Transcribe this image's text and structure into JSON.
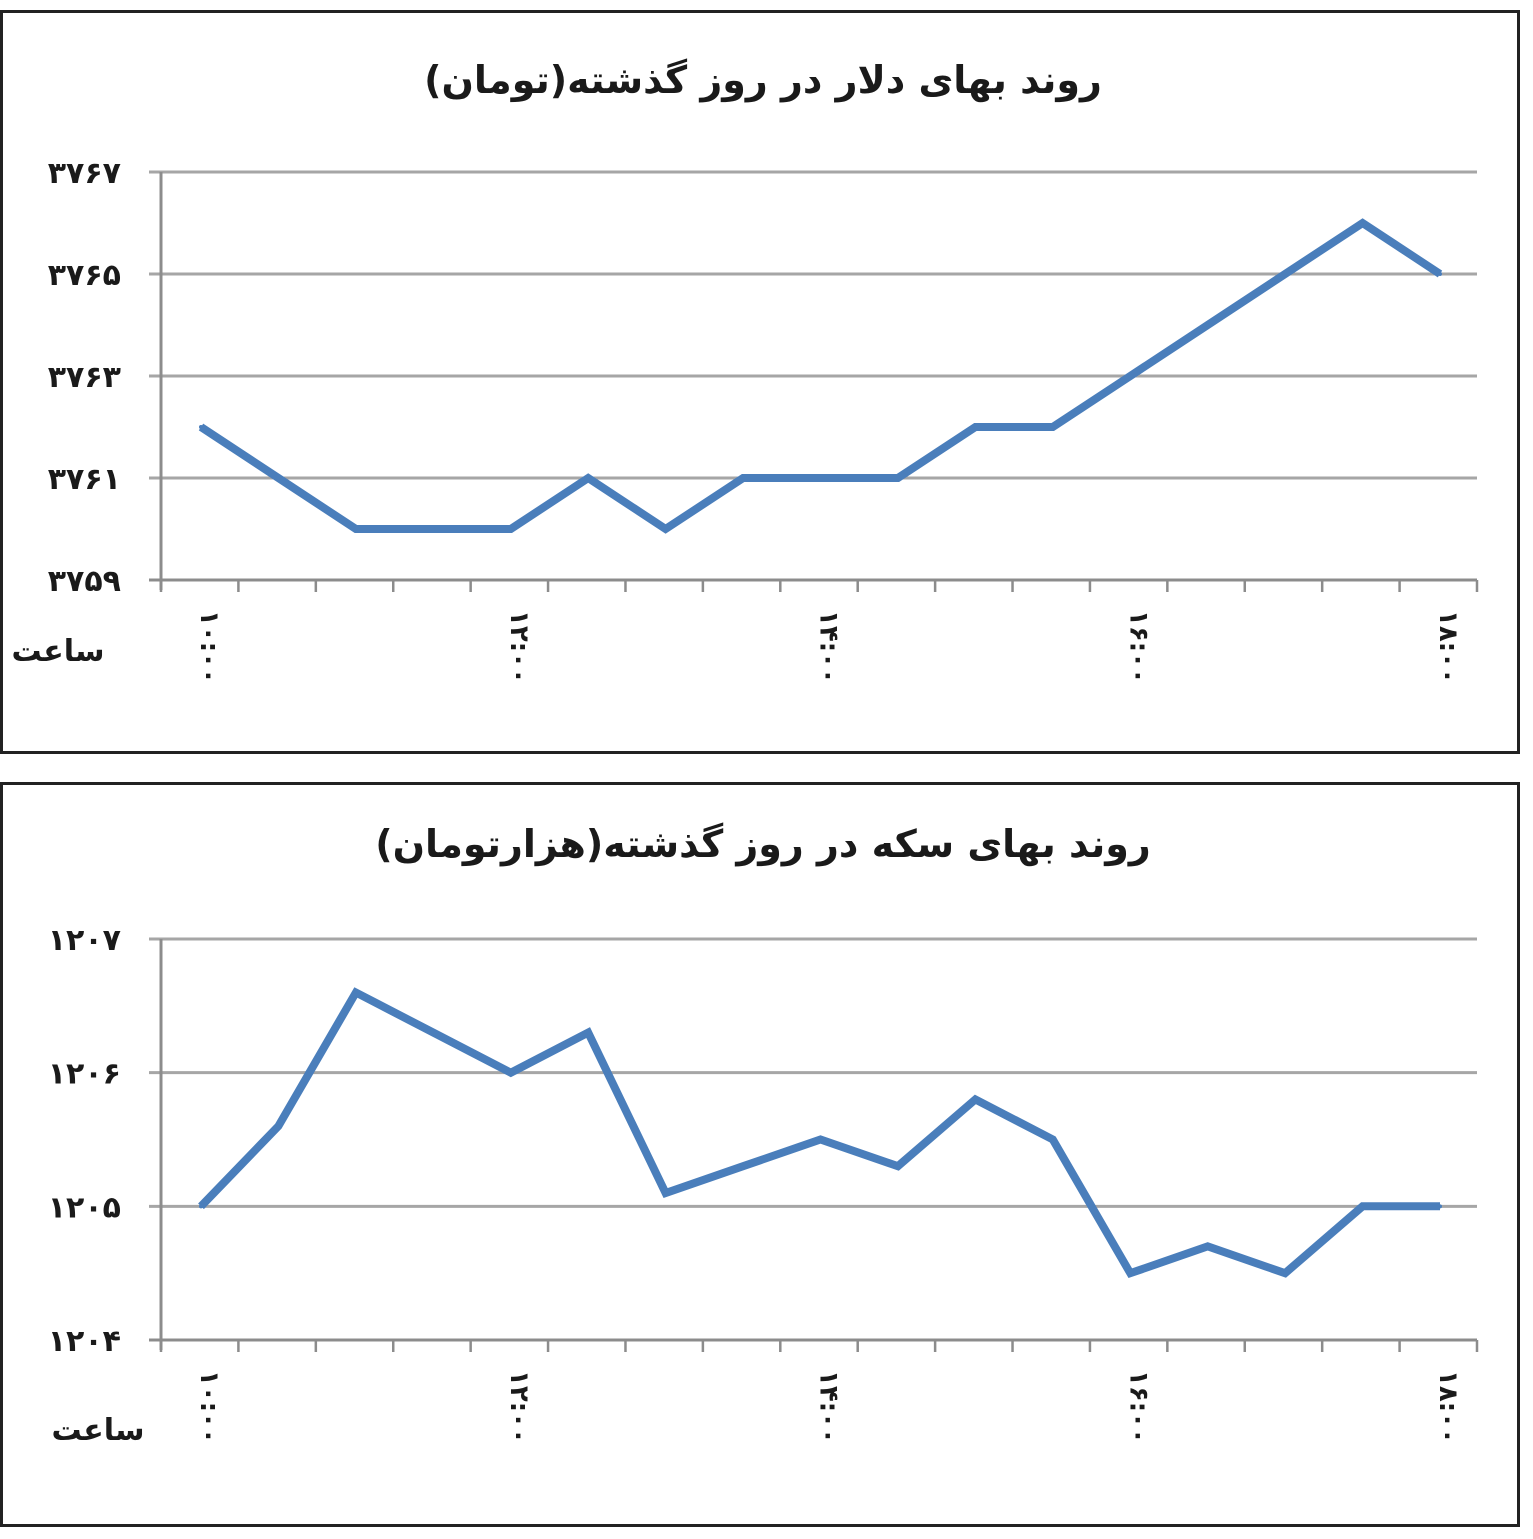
{
  "chart_data": [
    {
      "type": "line",
      "title": "روند بهای دلار در روز گذشته(تومان)",
      "xlabel": "ساعت",
      "ylabel": "",
      "ylim": [
        3759,
        3767
      ],
      "yticks": [
        3759,
        3761,
        3763,
        3765,
        3767
      ],
      "ytick_labels": [
        "۳۷۵۹",
        "۳۷۶۱",
        "۳۷۶۳",
        "۳۷۶۵",
        "۳۷۶۷"
      ],
      "xtick_labels": [
        "۱۰:۰۰",
        "۱۲:۰۰",
        "۱۴:۰۰",
        "۱۶:۰۰",
        "۱۸:۰۰"
      ],
      "xtick_positions": [
        0,
        4,
        8,
        12,
        16
      ],
      "grid": true,
      "legend": "none",
      "color": "#4a7ebb",
      "series": [
        {
          "values": [
            3762,
            3761,
            3760,
            3760,
            3760,
            3761,
            3760,
            3761,
            3761,
            3761,
            3762,
            3762,
            3763,
            3764,
            3765,
            3766,
            3765
          ]
        }
      ]
    },
    {
      "type": "line",
      "title": "روند بهای سکه در روز گذشته(هزارتومان)",
      "xlabel": "ساعت",
      "ylabel": "",
      "ylim": [
        1204,
        1207
      ],
      "yticks": [
        1204,
        1205,
        1206,
        1207
      ],
      "ytick_labels": [
        "۱۲۰۴",
        "۱۲۰۵",
        "۱۲۰۶",
        "۱۲۰۷"
      ],
      "xtick_labels": [
        "۱۰:۰۰",
        "۱۲:۰۰",
        "۱۴:۰۰",
        "۱۶:۰۰",
        "۱۸:۰۰"
      ],
      "xtick_positions": [
        0,
        4,
        8,
        12,
        16
      ],
      "grid": true,
      "legend": "none",
      "color": "#4a7ebb",
      "series": [
        {
          "values": [
            1205,
            1205.6,
            1206.6,
            1206.3,
            1206,
            1206.3,
            1205.1,
            1205.3,
            1205.5,
            1205.3,
            1205.8,
            1205.5,
            1204.5,
            1204.7,
            1204.5,
            1205,
            1205
          ]
        }
      ]
    }
  ]
}
